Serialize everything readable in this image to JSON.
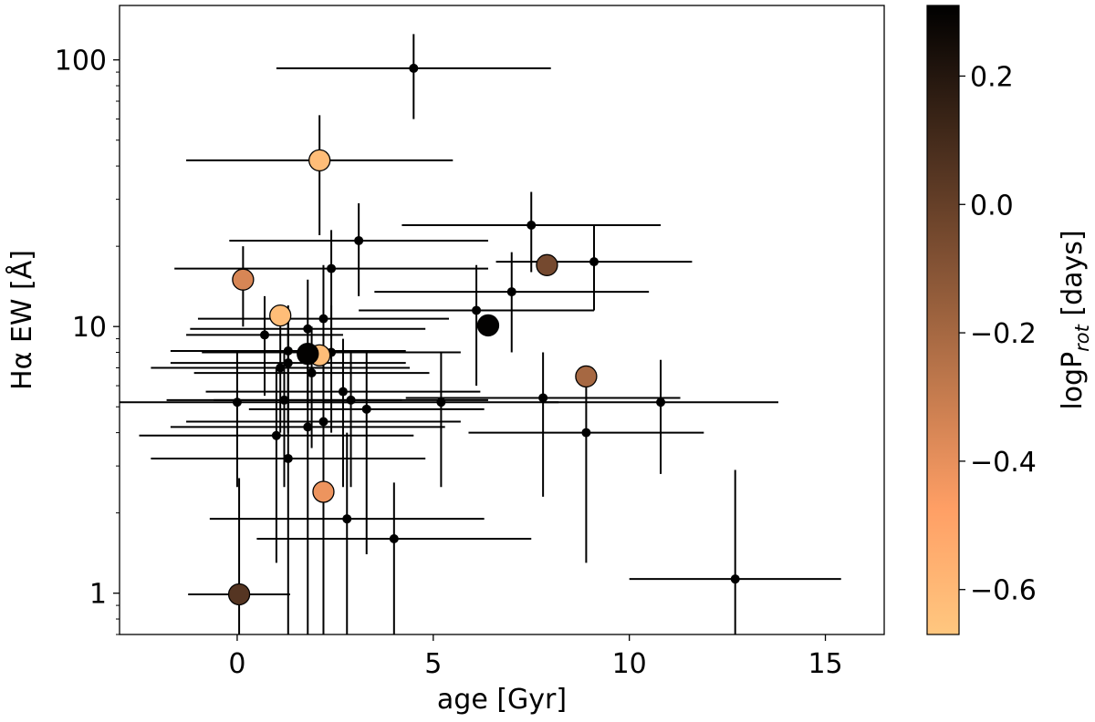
{
  "chart_data": {
    "type": "scatter",
    "xlabel": "age [Gyr]",
    "ylabel": "Hα EW [Å]",
    "colorbar_label": "logP",
    "colorbar_label_sub": "rot",
    "colorbar_label_suffix": " [days]",
    "xlim": [
      -3,
      16.5
    ],
    "ylim": [
      0.7,
      160
    ],
    "yscale": "log",
    "xticks": [
      0,
      5,
      10,
      15
    ],
    "xtick_labels": [
      "0",
      "5",
      "10",
      "15"
    ],
    "yticks": [
      1,
      10,
      100
    ],
    "ytick_labels": [
      "1",
      "10",
      "100"
    ],
    "colorbar_range": [
      -0.67,
      0.31
    ],
    "colorbar_ticks": [
      0.2,
      0.0,
      -0.2,
      -0.4,
      -0.6
    ],
    "colorbar_tick_labels": [
      "0.2",
      "0.0",
      "−0.2",
      "−0.4",
      "−0.6"
    ],
    "colormap": "copper_r",
    "small_points": [
      {
        "x": 4.5,
        "y": 93,
        "xerr": 3.5,
        "ylo": 60,
        "yhi": 125
      },
      {
        "x": 7.5,
        "y": 24,
        "xerr": 3.3,
        "ylo": 16,
        "yhi": 32
      },
      {
        "x": 9.1,
        "y": 17.5,
        "xerr": 2.5,
        "ylo": 11.5,
        "yhi": 24
      },
      {
        "x": 3.1,
        "y": 21,
        "xerr": 3.3,
        "ylo": 13,
        "yhi": 29
      },
      {
        "x": 2.4,
        "y": 16.5,
        "xerr": 4.0,
        "ylo": 9,
        "yhi": 23
      },
      {
        "x": 7.0,
        "y": 13.5,
        "xerr": 3.5,
        "ylo": 8,
        "yhi": 19
      },
      {
        "x": 6.1,
        "y": 11.5,
        "xerr": 3.0,
        "ylo": 6,
        "yhi": 17
      },
      {
        "x": 2.2,
        "y": 10.7,
        "xerr": 3.2,
        "ylo": 5,
        "yhi": 17
      },
      {
        "x": 1.8,
        "y": 9.8,
        "xerr": 3.0,
        "ylo": 5,
        "yhi": 15
      },
      {
        "x": 0.7,
        "y": 9.3,
        "xerr": 2.0,
        "ylo": 5.5,
        "yhi": 13
      },
      {
        "x": 1.3,
        "y": 8.1,
        "xerr": 3.0,
        "ylo": 4,
        "yhi": 12
      },
      {
        "x": 2.4,
        "y": 8.0,
        "xerr": 3.3,
        "ylo": 4,
        "yhi": 12
      },
      {
        "x": 1.3,
        "y": 7.3,
        "xerr": 3.0,
        "ylo": 4,
        "yhi": 11
      },
      {
        "x": 1.1,
        "y": 7.0,
        "xerr": 3.3,
        "ylo": 4,
        "yhi": 10
      },
      {
        "x": 1.9,
        "y": 6.7,
        "xerr": 3.0,
        "ylo": 3.5,
        "yhi": 10
      },
      {
        "x": 2.7,
        "y": 5.7,
        "xerr": 3.5,
        "ylo": 2.5,
        "yhi": 9
      },
      {
        "x": 0.0,
        "y": 5.2,
        "xerr": 3.0,
        "ylo": 2.5,
        "yhi": 8
      },
      {
        "x": 1.2,
        "y": 5.3,
        "xerr": 3.0,
        "ylo": 2.5,
        "yhi": 8
      },
      {
        "x": 2.9,
        "y": 5.3,
        "xerr": 3.5,
        "ylo": 2.5,
        "yhi": 8
      },
      {
        "x": 5.2,
        "y": 5.2,
        "xerr": 3.0,
        "ylo": 2.5,
        "yhi": 8
      },
      {
        "x": 7.8,
        "y": 5.4,
        "xerr": 3.5,
        "ylo": 2.3,
        "yhi": 8
      },
      {
        "x": 10.8,
        "y": 5.2,
        "xerr": 3.0,
        "ylo": 2.8,
        "yhi": 7.5
      },
      {
        "x": 3.3,
        "y": 4.9,
        "xerr": 3.0,
        "ylo": 1.4,
        "yhi": 8
      },
      {
        "x": 2.2,
        "y": 4.4,
        "xerr": 3.5,
        "ylo": 0.5,
        "yhi": 8
      },
      {
        "x": 1.8,
        "y": 4.2,
        "xerr": 3.5,
        "ylo": 0.5,
        "yhi": 8
      },
      {
        "x": 1.0,
        "y": 3.9,
        "xerr": 3.5,
        "ylo": 1.3,
        "yhi": 7
      },
      {
        "x": 8.9,
        "y": 4.0,
        "xerr": 3.0,
        "ylo": 1.3,
        "yhi": 7
      },
      {
        "x": 1.3,
        "y": 3.2,
        "xerr": 3.5,
        "ylo": 0.5,
        "yhi": 7
      },
      {
        "x": 2.8,
        "y": 1.9,
        "xerr": 3.5,
        "ylo": 0.5,
        "yhi": 4
      },
      {
        "x": 4.0,
        "y": 1.6,
        "xerr": 3.5,
        "ylo": 0.5,
        "yhi": 2.6
      },
      {
        "x": 12.7,
        "y": 1.13,
        "xerr": 2.7,
        "ylo": 0.5,
        "yhi": 2.9
      }
    ],
    "large_points": [
      {
        "x": 2.1,
        "y": 42,
        "xerr": 3.4,
        "ylo": 22,
        "yhi": 62,
        "logp": -0.62
      },
      {
        "x": 0.15,
        "y": 15,
        "xerr": 0,
        "ylo": 10,
        "yhi": 20,
        "logp": -0.35
      },
      {
        "x": 7.9,
        "y": 17,
        "xerr": 0,
        "ylo": 17,
        "yhi": 17,
        "logp": -0.05
      },
      {
        "x": 1.1,
        "y": 11,
        "xerr": 0,
        "ylo": 11,
        "yhi": 11,
        "logp": -0.62
      },
      {
        "x": 6.4,
        "y": 10.1,
        "xerr": 0,
        "ylo": 10.1,
        "yhi": 10.1,
        "logp": 0.3
      },
      {
        "x": 2.1,
        "y": 7.8,
        "xerr": 0,
        "ylo": 7.8,
        "yhi": 7.8,
        "logp": -0.62
      },
      {
        "x": 1.8,
        "y": 7.9,
        "xerr": 0,
        "ylo": 7.9,
        "yhi": 7.9,
        "logp": 0.3
      },
      {
        "x": 8.9,
        "y": 6.5,
        "xerr": 0,
        "ylo": 6.5,
        "yhi": 6.5,
        "logp": -0.2
      },
      {
        "x": 2.2,
        "y": 2.4,
        "xerr": 0,
        "ylo": 2.4,
        "yhi": 2.4,
        "logp": -0.42
      },
      {
        "x": 0.05,
        "y": 0.99,
        "xerr": 1.3,
        "ylo": 0.5,
        "yhi": 2.7,
        "logp": 0.05
      }
    ]
  }
}
